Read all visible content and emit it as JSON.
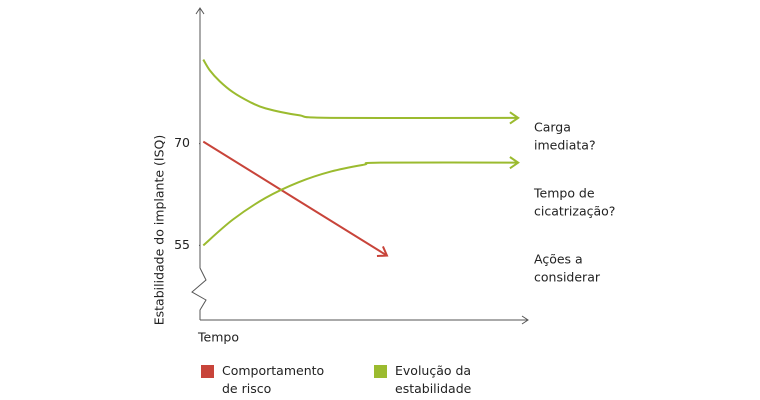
{
  "chart_data": {
    "type": "line",
    "y_label": "Estabilidade do implante (ISQ)",
    "x_label": "Tempo",
    "xlim": [
      0,
      100
    ],
    "ylim": [
      44,
      90
    ],
    "yticks": [
      55,
      70
    ],
    "axis_break": true,
    "series": [
      {
        "name": "Comportamento de risco",
        "color": "#c8443a",
        "x": [
          1,
          57
        ],
        "values": [
          70.3,
          53.5
        ]
      },
      {
        "name": "Evolução da estabilidade",
        "color": "#9bbb2f",
        "x": [
          1,
          3,
          6,
          10,
          15,
          20,
          30,
          40,
          97
        ],
        "values": [
          82.4,
          80.8,
          79.2,
          77.6,
          76.2,
          75.2,
          74.2,
          73.8,
          73.8
        ]
      },
      {
        "color": "#9bbb2f",
        "x": [
          1,
          10,
          20,
          30,
          40,
          50,
          55,
          97
        ],
        "values": [
          55,
          58.8,
          62,
          64.3,
          65.9,
          66.9,
          67.2,
          67.2
        ]
      }
    ],
    "annotations": [
      {
        "lines": [
          "Carga",
          "imediata?"
        ]
      },
      {
        "lines": [
          "Tempo de",
          "cicatrização?"
        ]
      },
      {
        "lines": [
          "Ações a",
          "considerar"
        ]
      }
    ]
  }
}
